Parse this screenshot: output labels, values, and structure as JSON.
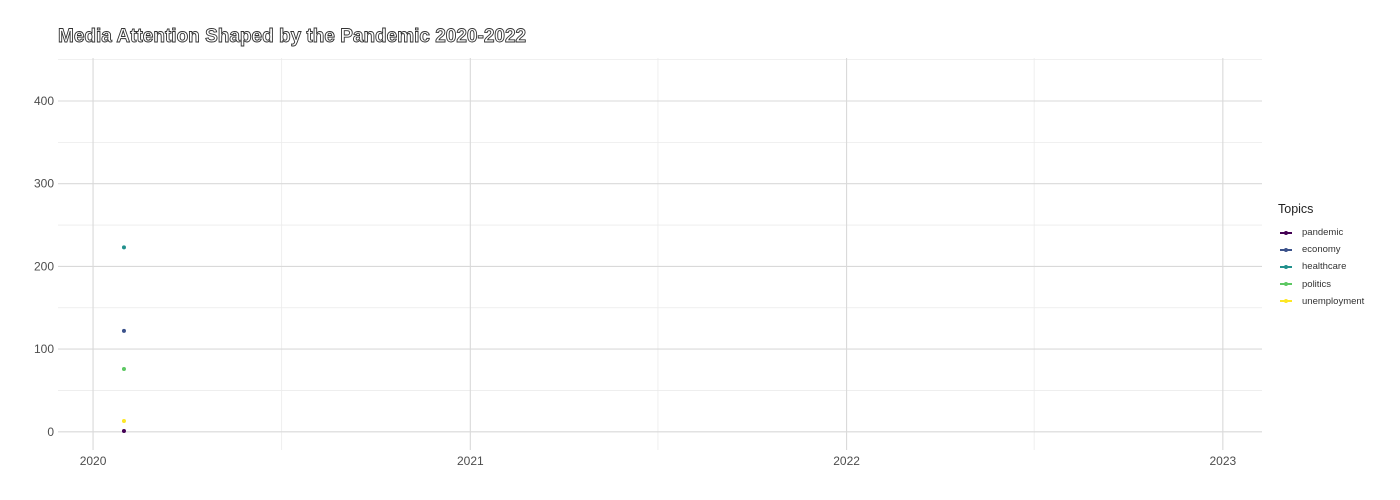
{
  "chart_data": {
    "type": "line",
    "title": "Media Attention Shaped by the Pandemic 2020-2022",
    "xlabel": "",
    "ylabel": "",
    "x_ticks": [
      "2020",
      "2021",
      "2022",
      "2023"
    ],
    "y_ticks": [
      0,
      100,
      200,
      300,
      400
    ],
    "xlim": [
      "2019-11-28",
      "2023-02-08"
    ],
    "ylim": [
      -22,
      452
    ],
    "grid": true,
    "legend": {
      "title": "Topics",
      "placement": "right"
    },
    "series": [
      {
        "name": "pandemic",
        "color": "#440154",
        "points": [
          {
            "x": "2020-01-31",
            "y": 1
          }
        ]
      },
      {
        "name": "economy",
        "color": "#3b528b",
        "points": [
          {
            "x": "2020-01-31",
            "y": 122
          }
        ]
      },
      {
        "name": "healthcare",
        "color": "#21908c",
        "points": [
          {
            "x": "2020-01-31",
            "y": 223
          }
        ]
      },
      {
        "name": "politics",
        "color": "#5dc863",
        "points": [
          {
            "x": "2020-01-31",
            "y": 76
          }
        ]
      },
      {
        "name": "unemployment",
        "color": "#fde725",
        "points": [
          {
            "x": "2020-01-31",
            "y": 13
          }
        ]
      }
    ]
  }
}
